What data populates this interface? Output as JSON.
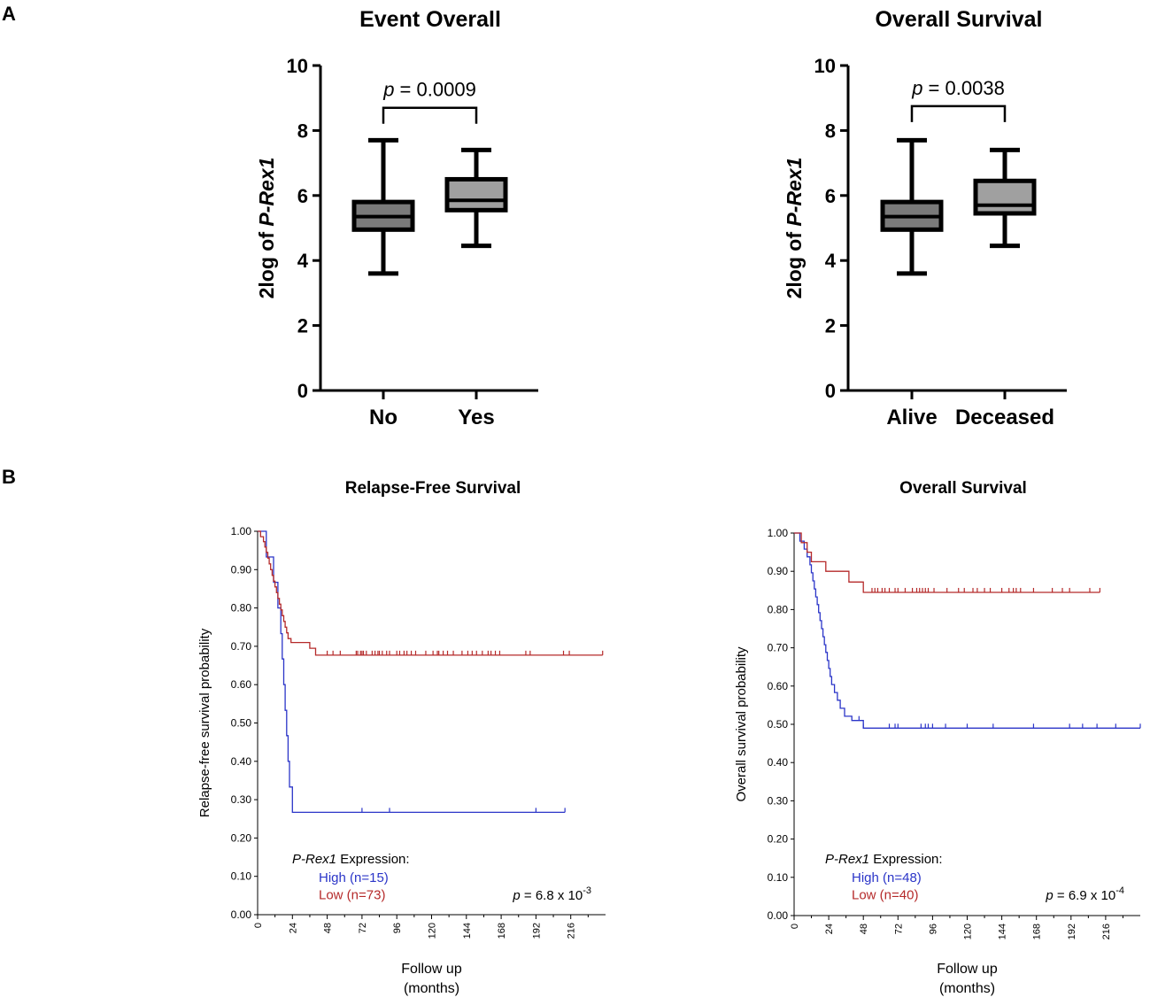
{
  "panels": {
    "a": "A",
    "b": "B"
  },
  "colors": {
    "high": "#2b35c8",
    "low": "#b52a2a",
    "box_fill": "#9a9a9a",
    "axis": "#000000"
  },
  "chart_data": [
    {
      "type": "box",
      "panel": "A",
      "title": "Event Overall",
      "ylabel_prefix": "2log of ",
      "ylabel_italic": "P-Rex1",
      "ylim": [
        0,
        10
      ],
      "yticks": [
        0,
        2,
        4,
        6,
        8,
        10
      ],
      "categories": [
        "No",
        "Yes"
      ],
      "boxes": [
        {
          "min": 3.6,
          "q1": 4.95,
          "median": 5.35,
          "q3": 5.8,
          "max": 7.7,
          "fill": "#7a7a7a"
        },
        {
          "min": 4.45,
          "q1": 5.55,
          "median": 5.85,
          "q3": 6.5,
          "max": 7.4,
          "fill": "#a0a0a0"
        }
      ],
      "pvalue_italic": "p",
      "pvalue_text": " = 0.0009",
      "bracket_y": 8.7
    },
    {
      "type": "box",
      "panel": "A",
      "title": "Overall Survival",
      "ylabel_prefix": "2log of ",
      "ylabel_italic": "P-Rex1",
      "ylim": [
        0,
        10
      ],
      "yticks": [
        0,
        2,
        4,
        6,
        8,
        10
      ],
      "categories": [
        "Alive",
        "Deceased"
      ],
      "boxes": [
        {
          "min": 3.6,
          "q1": 4.95,
          "median": 5.35,
          "q3": 5.8,
          "max": 7.7,
          "fill": "#7a7a7a"
        },
        {
          "min": 4.45,
          "q1": 5.45,
          "median": 5.7,
          "q3": 6.45,
          "max": 7.4,
          "fill": "#a0a0a0"
        }
      ],
      "pvalue_italic": "p",
      "pvalue_text": " = 0.0038",
      "bracket_y": 8.75
    },
    {
      "type": "line",
      "subtype": "kaplan-meier",
      "panel": "B",
      "title": "Relapse-Free Survival",
      "ylabel": "Relapse-free survival probability",
      "xlabel": "Follow up",
      "xlabel2": "(months)",
      "xlim": [
        0,
        240
      ],
      "ylim": [
        0,
        1
      ],
      "xticks": [
        0,
        24,
        48,
        72,
        96,
        120,
        144,
        168,
        192,
        216
      ],
      "ytick_labels": [
        "0.00",
        "0.10",
        "0.20",
        "0.30",
        "0.40",
        "0.50",
        "0.60",
        "0.70",
        "0.80",
        "0.90",
        "1.00"
      ],
      "legend_title_italic": "P-Rex1",
      "legend_title_rest": " Expression:",
      "pvalue_italic": "p",
      "pvalue_text": " = 6.8 x 10",
      "pvalue_exp": "-3",
      "series": [
        {
          "name": "High (n=15)",
          "color": "#2b35c8",
          "steps": [
            [
              0,
              1.0
            ],
            [
              6,
              1.0
            ],
            [
              6,
              0.933
            ],
            [
              11,
              0.933
            ],
            [
              11,
              0.867
            ],
            [
              14,
              0.867
            ],
            [
              14,
              0.8
            ],
            [
              16,
              0.8
            ],
            [
              16,
              0.733
            ],
            [
              17,
              0.733
            ],
            [
              17,
              0.667
            ],
            [
              18,
              0.667
            ],
            [
              18,
              0.6
            ],
            [
              19,
              0.6
            ],
            [
              19,
              0.533
            ],
            [
              20,
              0.533
            ],
            [
              20,
              0.467
            ],
            [
              21,
              0.467
            ],
            [
              21,
              0.4
            ],
            [
              22,
              0.4
            ],
            [
              22,
              0.333
            ],
            [
              24,
              0.333
            ],
            [
              24,
              0.267
            ],
            [
              212,
              0.267
            ]
          ],
          "censors": [
            72,
            91,
            192,
            212
          ]
        },
        {
          "name": "Low (n=73)",
          "color": "#b52a2a",
          "steps": [
            [
              0,
              1.0
            ],
            [
              2,
              1.0
            ],
            [
              2,
              0.986
            ],
            [
              4,
              0.986
            ],
            [
              4,
              0.973
            ],
            [
              5,
              0.973
            ],
            [
              5,
              0.959
            ],
            [
              6,
              0.959
            ],
            [
              6,
              0.945
            ],
            [
              7,
              0.945
            ],
            [
              7,
              0.93
            ],
            [
              8,
              0.93
            ],
            [
              8,
              0.915
            ],
            [
              9,
              0.915
            ],
            [
              9,
              0.9
            ],
            [
              10,
              0.9
            ],
            [
              10,
              0.885
            ],
            [
              11,
              0.885
            ],
            [
              11,
              0.87
            ],
            [
              12,
              0.87
            ],
            [
              12,
              0.855
            ],
            [
              13,
              0.855
            ],
            [
              13,
              0.84
            ],
            [
              14,
              0.84
            ],
            [
              14,
              0.825
            ],
            [
              15,
              0.825
            ],
            [
              15,
              0.81
            ],
            [
              16,
              0.81
            ],
            [
              16,
              0.795
            ],
            [
              17,
              0.795
            ],
            [
              17,
              0.78
            ],
            [
              18,
              0.78
            ],
            [
              18,
              0.765
            ],
            [
              19,
              0.765
            ],
            [
              19,
              0.75
            ],
            [
              20,
              0.75
            ],
            [
              20,
              0.735
            ],
            [
              21,
              0.735
            ],
            [
              21,
              0.72
            ],
            [
              23,
              0.72
            ],
            [
              23,
              0.71
            ],
            [
              36,
              0.71
            ],
            [
              36,
              0.695
            ],
            [
              40,
              0.695
            ],
            [
              40,
              0.677
            ],
            [
              238,
              0.677
            ]
          ],
          "censors": [
            48,
            52,
            57,
            68,
            69,
            71,
            72,
            73,
            75,
            79,
            81,
            83,
            84,
            86,
            89,
            91,
            96,
            98,
            101,
            103,
            106,
            109,
            116,
            121,
            124,
            125,
            128,
            131,
            135,
            141,
            145,
            148,
            151,
            155,
            159,
            161,
            164,
            167,
            185,
            188,
            211,
            215,
            238
          ]
        }
      ]
    },
    {
      "type": "line",
      "subtype": "kaplan-meier",
      "panel": "B",
      "title": "Overall Survival",
      "ylabel": "Overall survival probability",
      "xlabel": "Follow up",
      "xlabel2": "(months)",
      "xlim": [
        0,
        240
      ],
      "ylim": [
        0,
        1
      ],
      "xticks": [
        0,
        24,
        48,
        72,
        96,
        120,
        144,
        168,
        192,
        216
      ],
      "ytick_labels": [
        "0.00",
        "0.10",
        "0.20",
        "0.30",
        "0.40",
        "0.50",
        "0.60",
        "0.70",
        "0.80",
        "0.90",
        "1.00"
      ],
      "legend_title_italic": "P-Rex1",
      "legend_title_rest": " Expression:",
      "pvalue_italic": "p",
      "pvalue_text": " = 6.9 x 10",
      "pvalue_exp": "-4",
      "series": [
        {
          "name": "High (n=48)",
          "color": "#2b35c8",
          "steps": [
            [
              0,
              1.0
            ],
            [
              4,
              1.0
            ],
            [
              4,
              0.979
            ],
            [
              7,
              0.979
            ],
            [
              7,
              0.958
            ],
            [
              9,
              0.958
            ],
            [
              9,
              0.938
            ],
            [
              11,
              0.938
            ],
            [
              11,
              0.917
            ],
            [
              12,
              0.917
            ],
            [
              12,
              0.896
            ],
            [
              13,
              0.896
            ],
            [
              13,
              0.875
            ],
            [
              14,
              0.875
            ],
            [
              14,
              0.854
            ],
            [
              15,
              0.854
            ],
            [
              15,
              0.833
            ],
            [
              16,
              0.833
            ],
            [
              16,
              0.813
            ],
            [
              17,
              0.813
            ],
            [
              17,
              0.792
            ],
            [
              18,
              0.792
            ],
            [
              18,
              0.771
            ],
            [
              19,
              0.771
            ],
            [
              19,
              0.75
            ],
            [
              20,
              0.75
            ],
            [
              20,
              0.729
            ],
            [
              21,
              0.729
            ],
            [
              21,
              0.708
            ],
            [
              22,
              0.708
            ],
            [
              22,
              0.688
            ],
            [
              23,
              0.688
            ],
            [
              23,
              0.667
            ],
            [
              24,
              0.667
            ],
            [
              24,
              0.646
            ],
            [
              25,
              0.646
            ],
            [
              25,
              0.625
            ],
            [
              26,
              0.625
            ],
            [
              26,
              0.604
            ],
            [
              28,
              0.604
            ],
            [
              28,
              0.583
            ],
            [
              30,
              0.583
            ],
            [
              30,
              0.563
            ],
            [
              32,
              0.563
            ],
            [
              32,
              0.542
            ],
            [
              35,
              0.542
            ],
            [
              35,
              0.521
            ],
            [
              40,
              0.521
            ],
            [
              40,
              0.51
            ],
            [
              48,
              0.51
            ],
            [
              48,
              0.49
            ],
            [
              240,
              0.49
            ]
          ],
          "censors": [
            45,
            48,
            66,
            70,
            72,
            88,
            91,
            93,
            96,
            105,
            120,
            138,
            166,
            191,
            200,
            210,
            223,
            240
          ]
        },
        {
          "name": "Low (n=40)",
          "color": "#b52a2a",
          "steps": [
            [
              0,
              1.0
            ],
            [
              5,
              1.0
            ],
            [
              5,
              0.975
            ],
            [
              9,
              0.975
            ],
            [
              9,
              0.95
            ],
            [
              12,
              0.95
            ],
            [
              12,
              0.925
            ],
            [
              22,
              0.925
            ],
            [
              22,
              0.9
            ],
            [
              38,
              0.9
            ],
            [
              38,
              0.872
            ],
            [
              48,
              0.872
            ],
            [
              48,
              0.845
            ],
            [
              212,
              0.845
            ]
          ],
          "censors": [
            54,
            56,
            58,
            61,
            63,
            66,
            70,
            72,
            77,
            82,
            85,
            87,
            89,
            91,
            93,
            97,
            106,
            114,
            118,
            124,
            127,
            132,
            136,
            144,
            149,
            152,
            154,
            157,
            166,
            179,
            186,
            191,
            205,
            212
          ]
        }
      ]
    }
  ]
}
